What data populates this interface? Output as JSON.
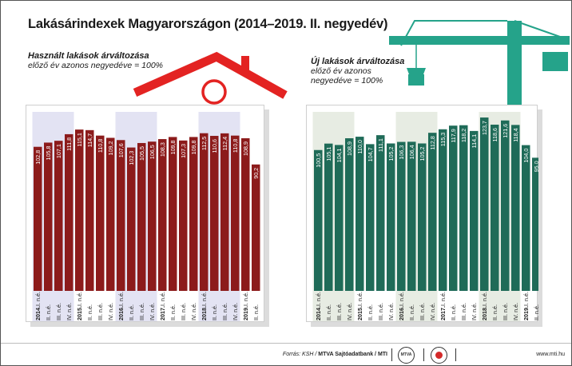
{
  "title": "Lakásárindexek Magyarországon (2014–2019. II. negyedév)",
  "left_subtitle": {
    "line1": "Használt lakások árváltozása",
    "line2": "előző év azonos negyedéve = 100%"
  },
  "right_subtitle": {
    "line1": "Új lakások árváltozása",
    "line2": "előző év azonos",
    "line3": "negyedéve = 100%"
  },
  "footer": {
    "source_prefix": "Forrás: KSH / ",
    "source_bold": "MTVA Sajtóadatbank / MTI",
    "website": "www.mti.hu",
    "logo_mtva": "MTVA"
  },
  "colors": {
    "used_bar": "#8c1b1b",
    "new_bar": "#1f6b58",
    "roof": "#e32322",
    "crane": "#25a38a",
    "band_used": "#e3e3f3",
    "band_new": "#e7ece3"
  },
  "icons": [
    "house-roof-icon",
    "crane-icon"
  ],
  "chart_data": [
    {
      "type": "bar",
      "name": "used",
      "ylim": [
        0,
        130
      ],
      "grid": false,
      "x": [
        "2014.I. n.é.",
        "II. n.é.",
        "III. n.é.",
        "IV. n.é.",
        "2015.I. n.é.",
        "II. n.é.",
        "III. n.é.",
        "IV. n.é.",
        "2016.I. n.é.",
        "II. n.é.",
        "III. n.é.",
        "IV. n.é.",
        "2017.I. n.é.",
        "II. n.é.",
        "III. n.é.",
        "IV. n.é.",
        "2018.I. n.é.",
        "II. n.é.",
        "III. n.é.",
        "IV. n.é.",
        "2019.I. n.é.",
        "II. n.é."
      ],
      "category_labels": [
        {
          "year": "2014.",
          "q": "I. n.é."
        },
        {
          "year": "",
          "q": "II. n.é."
        },
        {
          "year": "",
          "q": "III. n.é."
        },
        {
          "year": "",
          "q": "IV. n.é."
        },
        {
          "year": "2015.",
          "q": "I. n.é."
        },
        {
          "year": "",
          "q": "II. n.é."
        },
        {
          "year": "",
          "q": "III. n.é."
        },
        {
          "year": "",
          "q": "IV. n.é."
        },
        {
          "year": "2016.",
          "q": "I. n.é."
        },
        {
          "year": "",
          "q": "II. n.é."
        },
        {
          "year": "",
          "q": "III. n.é."
        },
        {
          "year": "",
          "q": "IV. n.é."
        },
        {
          "year": "2017.",
          "q": "I. n.é."
        },
        {
          "year": "",
          "q": "II. n.é."
        },
        {
          "year": "",
          "q": "III. n.é."
        },
        {
          "year": "",
          "q": "IV. n.é."
        },
        {
          "year": "2018.",
          "q": "I. n.é."
        },
        {
          "year": "",
          "q": "II. n.é."
        },
        {
          "year": "",
          "q": "III. n.é."
        },
        {
          "year": "",
          "q": "IV. n.é."
        },
        {
          "year": "2019.",
          "q": "I. n.é."
        },
        {
          "year": "",
          "q": "II. n.é."
        }
      ],
      "values": [
        102.8,
        105.8,
        107.1,
        111.8,
        115.1,
        114.7,
        110.8,
        109.2,
        107.6,
        102.3,
        105.5,
        106.5,
        108.3,
        109.8,
        107.3,
        109.8,
        112.5,
        110.6,
        112.4,
        110.8,
        108.9,
        90.2
      ],
      "labels": [
        "102,8",
        "105,8",
        "107,1",
        "111,8",
        "115,1",
        "114,7",
        "110,8",
        "109,2",
        "107,6",
        "102,3",
        "105,5",
        "106,5",
        "108,3",
        "109,8",
        "107,3",
        "109,8",
        "112,5",
        "110,6",
        "112,4",
        "110,8",
        "108,9",
        "90,2"
      ]
    },
    {
      "type": "bar",
      "name": "new",
      "ylim": [
        0,
        130
      ],
      "grid": false,
      "x": [
        "2014.I. n.é.",
        "II. n.é.",
        "III. n.é.",
        "IV. n.é.",
        "2015.I. n.é.",
        "II. n.é.",
        "III. n.é.",
        "IV. n.é.",
        "2016.I. n.é.",
        "II. n.é.",
        "III. n.é.",
        "IV. n.é.",
        "2017.I. n.é.",
        "II. n.é.",
        "III. n.é.",
        "IV. n.é.",
        "2018.I. n.é.",
        "II. n.é.",
        "III. n.é.",
        "IV. n.é.",
        "2019.I. n.é.",
        "II. n.é."
      ],
      "category_labels": [
        {
          "year": "2014.",
          "q": "I. n.é."
        },
        {
          "year": "",
          "q": "II. n.é."
        },
        {
          "year": "",
          "q": "III. n.é."
        },
        {
          "year": "",
          "q": "IV. n.é."
        },
        {
          "year": "2015.",
          "q": "I. n.é."
        },
        {
          "year": "",
          "q": "II. n.é."
        },
        {
          "year": "",
          "q": "III. n.é."
        },
        {
          "year": "",
          "q": "IV. n.é."
        },
        {
          "year": "2016.",
          "q": "I. n.é."
        },
        {
          "year": "",
          "q": "II. n.é."
        },
        {
          "year": "",
          "q": "III. n.é."
        },
        {
          "year": "",
          "q": "IV. n.é."
        },
        {
          "year": "2017.",
          "q": "I. n.é."
        },
        {
          "year": "",
          "q": "II. n.é."
        },
        {
          "year": "",
          "q": "III. n.é."
        },
        {
          "year": "",
          "q": "IV. n.é."
        },
        {
          "year": "2018.",
          "q": "I. n.é."
        },
        {
          "year": "",
          "q": "II. n.é."
        },
        {
          "year": "",
          "q": "III. n.é."
        },
        {
          "year": "",
          "q": "IV. n.é."
        },
        {
          "year": "2019.",
          "q": "I. n.é."
        },
        {
          "year": "",
          "q": "II. n.é."
        }
      ],
      "values": [
        100.5,
        105.1,
        104.1,
        108.9,
        110.0,
        104.7,
        111.1,
        105.2,
        106.3,
        106.4,
        105.2,
        112.8,
        115.3,
        117.9,
        118.2,
        114.1,
        123.7,
        118.6,
        121.6,
        118.4,
        104.0,
        95.0
      ],
      "labels": [
        "100,5",
        "105,1",
        "104,1",
        "108,9",
        "110,0",
        "104,7",
        "111,1",
        "105,2",
        "106,3",
        "106,4",
        "105,2",
        "112,8",
        "115,3",
        "117,9",
        "118,2",
        "114,1",
        "123,7",
        "118,6",
        "121,6",
        "118,4",
        "104,0",
        "95,0"
      ]
    }
  ]
}
